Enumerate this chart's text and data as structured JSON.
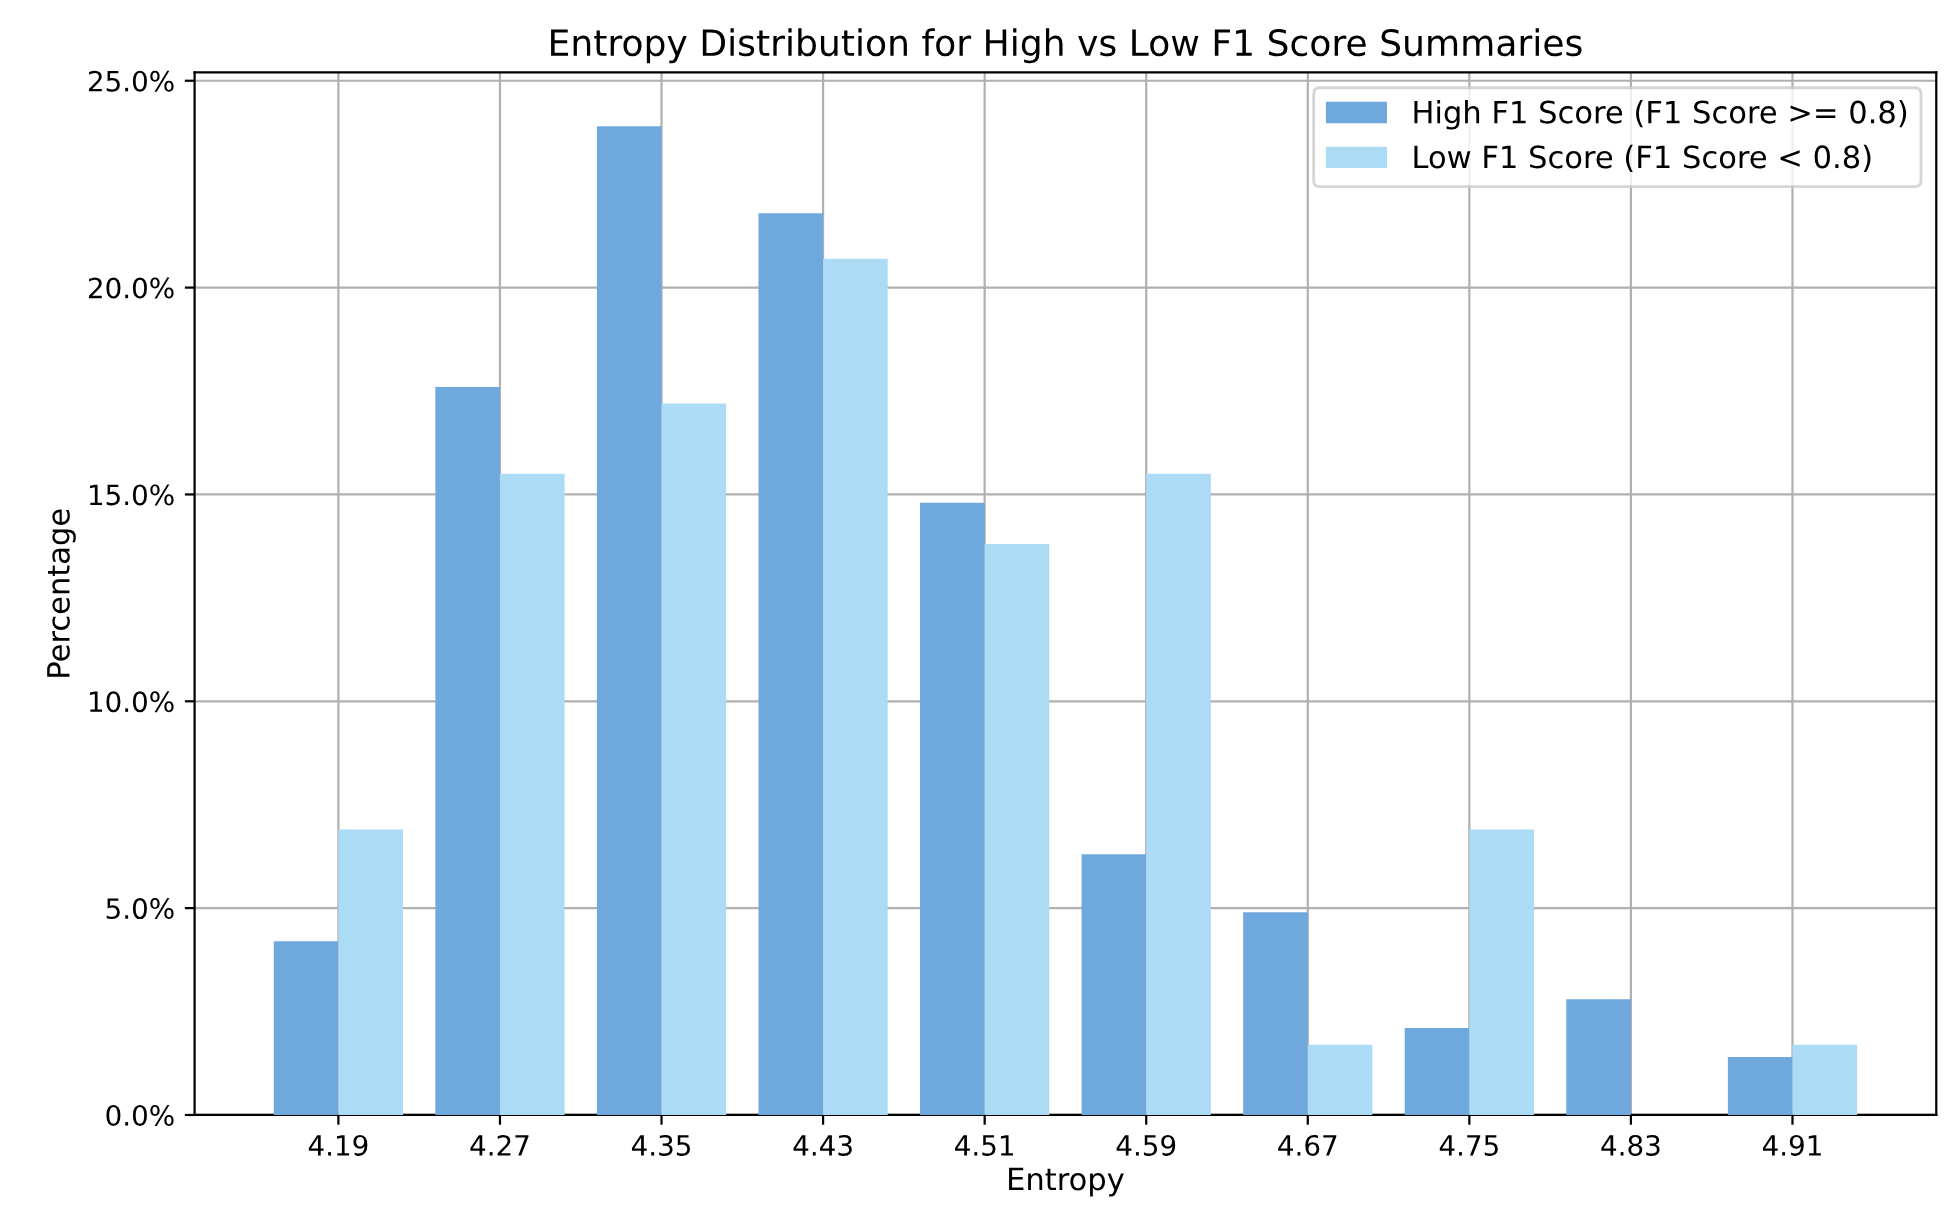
{
  "chart_data": {
    "type": "bar",
    "title": "Entropy Distribution for High vs Low F1 Score Summaries",
    "xlabel": "Entropy",
    "ylabel": "Percentage",
    "categories": [
      "4.19",
      "4.27",
      "4.35",
      "4.43",
      "4.51",
      "4.59",
      "4.67",
      "4.75",
      "4.83",
      "4.91"
    ],
    "series": [
      {
        "name": "High F1 Score (F1 Score >= 0.8)",
        "color": "#6fa8dc",
        "values": [
          4.2,
          17.6,
          23.9,
          21.8,
          14.8,
          6.3,
          4.9,
          2.1,
          2.8,
          1.4
        ]
      },
      {
        "name": "Low F1 Score (F1 Score < 0.8)",
        "color": "#acdcf5",
        "values": [
          6.9,
          15.5,
          17.2,
          20.7,
          13.8,
          15.5,
          1.7,
          6.9,
          0,
          1.7
        ]
      }
    ],
    "ylim": [
      0,
      25.2
    ],
    "yticks": [
      {
        "value": 0,
        "label": "0.0%"
      },
      {
        "value": 5,
        "label": "5.0%"
      },
      {
        "value": 10,
        "label": "10.0%"
      },
      {
        "value": 15,
        "label": "15.0%"
      },
      {
        "value": 20,
        "label": "20.0%"
      },
      {
        "value": 25,
        "label": "25.0%"
      }
    ],
    "grid": true,
    "legend": "top right"
  }
}
